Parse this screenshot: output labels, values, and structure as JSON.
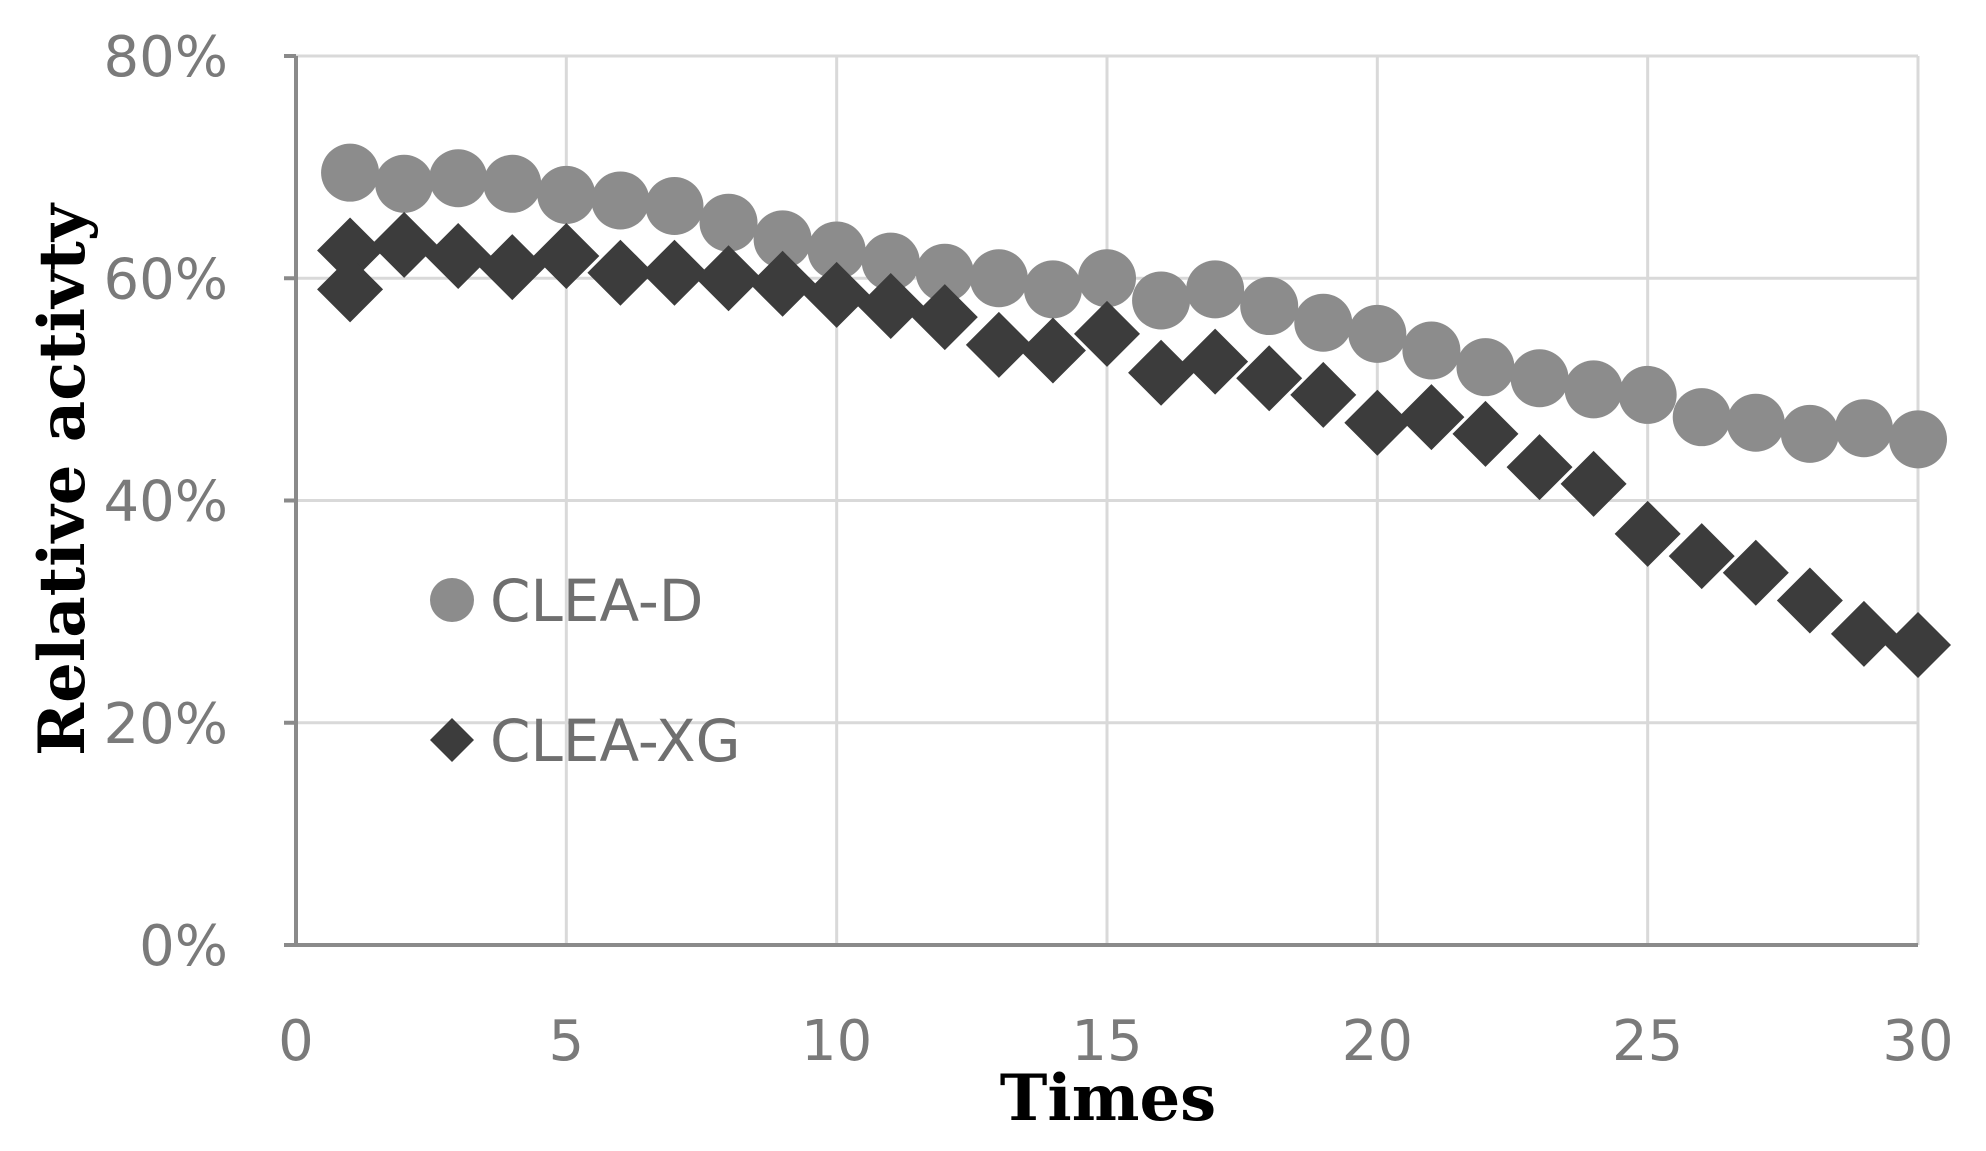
{
  "chart_data": {
    "type": "scatter",
    "title": "",
    "xlabel": "Times",
    "ylabel": "Relative activty",
    "xlim": [
      0,
      30
    ],
    "ylim": [
      0,
      0.8
    ],
    "x_ticks": [
      0,
      5,
      10,
      15,
      20,
      25,
      30
    ],
    "x_tick_labels": [
      "0",
      "5",
      "10",
      "15",
      "20",
      "25",
      "30"
    ],
    "y_ticks": [
      0,
      0.2,
      0.4,
      0.6,
      0.8
    ],
    "y_tick_labels": [
      "0%",
      "20%",
      "40%",
      "60%",
      "80%"
    ],
    "grid": true,
    "legend_position": "center-left",
    "x": [
      1,
      2,
      3,
      4,
      5,
      6,
      7,
      8,
      9,
      10,
      11,
      12,
      13,
      14,
      15,
      16,
      17,
      18,
      19,
      20,
      21,
      22,
      23,
      24,
      25,
      26,
      27,
      28,
      29,
      30
    ],
    "series": [
      {
        "name": "CLEA-D",
        "marker": "circle",
        "color": "#8c8c8c",
        "values": [
          0.695,
          0.685,
          0.69,
          0.685,
          0.675,
          0.67,
          0.665,
          0.65,
          0.635,
          0.625,
          0.615,
          0.605,
          0.6,
          0.59,
          0.6,
          0.58,
          0.59,
          0.575,
          0.56,
          0.55,
          0.535,
          0.52,
          0.51,
          0.5,
          0.495,
          0.475,
          0.47,
          0.46,
          0.465,
          0.455
        ]
      },
      {
        "name": "CLEA-XG",
        "marker": "diamond",
        "color": "#3c3c3c",
        "values": [
          0.625,
          0.63,
          0.62,
          0.61,
          0.62,
          0.605,
          0.605,
          0.6,
          0.595,
          0.585,
          0.575,
          0.565,
          0.54,
          0.535,
          0.55,
          0.515,
          0.525,
          0.51,
          0.495,
          0.47,
          0.475,
          0.46,
          0.43,
          0.415,
          0.37,
          0.35,
          0.335,
          0.31,
          0.28,
          0.27
        ],
        "extra_points": [
          [
            1,
            0.59
          ]
        ]
      }
    ]
  }
}
